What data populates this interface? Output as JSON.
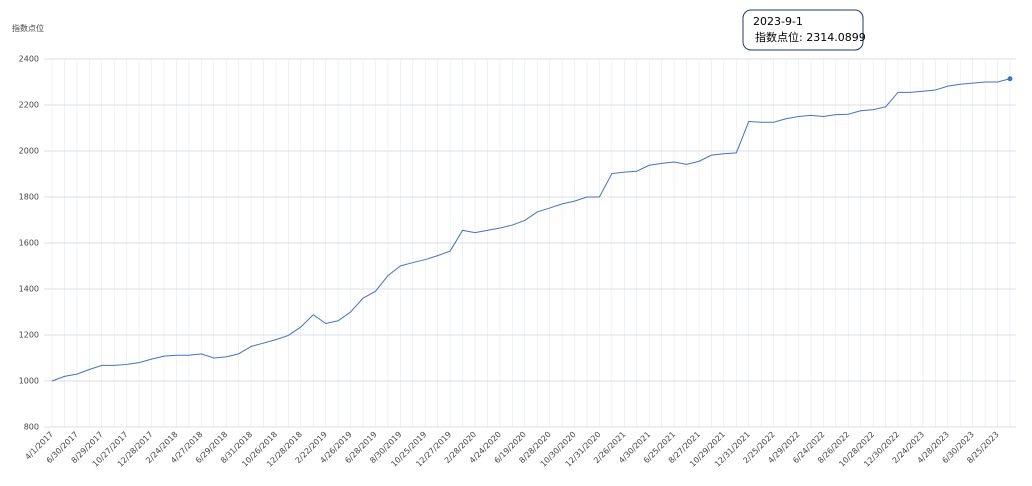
{
  "chart_data": {
    "type": "line",
    "y_label": "指数点位",
    "categories": [
      "4/1/2017",
      null,
      "6/30/2017",
      null,
      "8/29/2017",
      null,
      "10/27/2017",
      null,
      "12/28/2017",
      null,
      "2/24/2018",
      null,
      "4/27/2018",
      null,
      "6/29/2018",
      null,
      "8/31/2018",
      null,
      "10/26/2018",
      null,
      "12/28/2018",
      null,
      "2/22/2019",
      null,
      "4/26/2019",
      null,
      "6/28/2019",
      null,
      "8/30/2019",
      null,
      "10/25/2019",
      null,
      "12/27/2019",
      null,
      "2/28/2020",
      null,
      "4/24/2020",
      null,
      "6/19/2020",
      null,
      "8/28/2020",
      null,
      "10/30/2020",
      null,
      "12/31/2020",
      null,
      "2/26/2021",
      null,
      "4/30/2021",
      null,
      "6/25/2021",
      null,
      "8/27/2021",
      null,
      "10/29/2021",
      null,
      "12/31/2021",
      null,
      "2/25/2022",
      null,
      "4/29/2022",
      null,
      "6/24/2022",
      null,
      "8/26/2022",
      null,
      "10/28/2022",
      null,
      "12/30/2022",
      null,
      "2/24/2023",
      null,
      "4/28/2023",
      null,
      "6/30/2023",
      null,
      "8/25/2023",
      null
    ],
    "series": [
      {
        "name": "指数点位",
        "color": "#4472c4",
        "values": [
          1000,
          1020,
          1030,
          1050,
          1068,
          1068,
          1072,
          1080,
          1095,
          1108,
          1112,
          1112,
          1118,
          1100,
          1105,
          1118,
          1150,
          1165,
          1180,
          1198,
          1235,
          1288,
          1250,
          1262,
          1300,
          1360,
          1390,
          1458,
          1500,
          1515,
          1528,
          1545,
          1565,
          1655,
          1645,
          1655,
          1665,
          1678,
          1698,
          1735,
          1752,
          1770,
          1782,
          1800,
          1800,
          1902,
          1908,
          1912,
          1938,
          1946,
          1952,
          1942,
          1955,
          1982,
          1988,
          1992,
          2128,
          2125,
          2125,
          2140,
          2150,
          2155,
          2150,
          2158,
          2160,
          2175,
          2180,
          2192,
          2255,
          2255,
          2260,
          2265,
          2282,
          2290,
          2295,
          2300,
          2300,
          2314.0899
        ]
      }
    ],
    "ylim": [
      800,
      2400
    ],
    "yticks": [
      800,
      1000,
      1200,
      1400,
      1600,
      1800,
      2000,
      2200,
      2400
    ],
    "grid": true,
    "tooltip": {
      "title": "2023-9-1",
      "text": "指数点位: 2314.0899"
    }
  }
}
